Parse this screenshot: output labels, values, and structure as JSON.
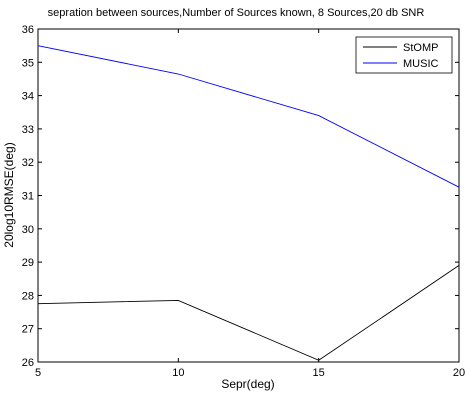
{
  "chart_data": {
    "type": "line",
    "title": "sepration between sources,Number of Sources known, 8 Sources,20 db SNR",
    "xlabel": "Sepr(deg)",
    "ylabel": "20log10RMSE(deg)",
    "x": [
      5,
      10,
      15,
      20
    ],
    "xlim": [
      5,
      20
    ],
    "ylim": [
      26,
      36
    ],
    "xticks": [
      5,
      10,
      15,
      20
    ],
    "yticks": [
      26,
      27,
      28,
      29,
      30,
      31,
      32,
      33,
      34,
      35,
      36
    ],
    "grid": false,
    "legend_position": "top-right",
    "series": [
      {
        "name": "StOMP",
        "color": "#000000",
        "values": [
          27.75,
          27.85,
          26.05,
          28.9
        ]
      },
      {
        "name": "MUSIC",
        "color": "#0000ff",
        "values": [
          35.5,
          34.65,
          33.4,
          31.25
        ]
      }
    ]
  }
}
